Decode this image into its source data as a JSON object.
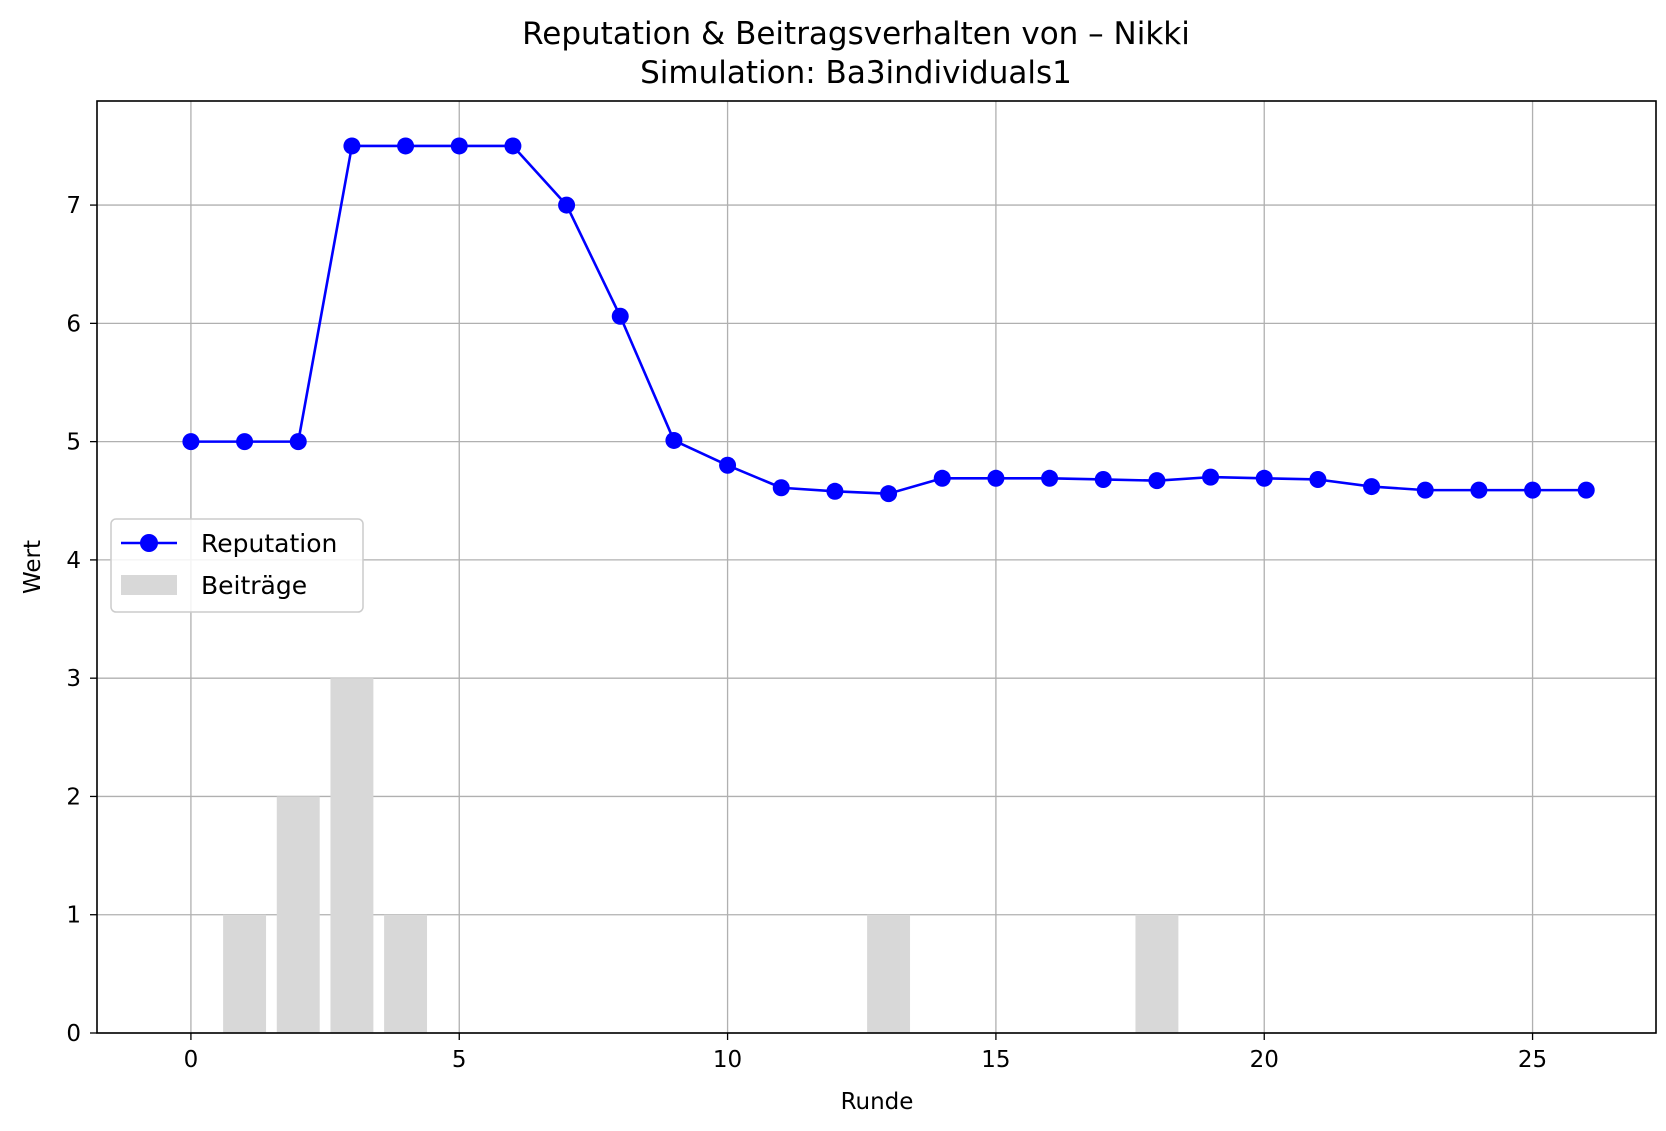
{
  "chart_data": {
    "type": "line",
    "title": "Reputation & Beitragsverhalten von – Nikki",
    "subtitle": "Simulation: Ba3individuals1",
    "xlabel": "Runde",
    "ylabel": "Wert",
    "xlim": [
      -1.75,
      27.3
    ],
    "ylim": [
      0,
      7.88
    ],
    "xticks": [
      0,
      5,
      10,
      15,
      20,
      25
    ],
    "yticks": [
      0,
      1,
      2,
      3,
      4,
      5,
      6,
      7
    ],
    "grid": true,
    "legend_position": "center-left",
    "series": [
      {
        "name": "Reputation",
        "kind": "line",
        "color": "#0000ff",
        "marker": "circle",
        "x": [
          0,
          1,
          2,
          3,
          4,
          5,
          6,
          7,
          8,
          9,
          10,
          11,
          12,
          13,
          14,
          15,
          16,
          17,
          18,
          19,
          20,
          21,
          22,
          23,
          24,
          25,
          26
        ],
        "values": [
          5.0,
          5.0,
          5.0,
          7.5,
          7.5,
          7.5,
          7.5,
          7.0,
          6.06,
          5.01,
          4.8,
          4.61,
          4.58,
          4.56,
          4.69,
          4.69,
          4.69,
          4.68,
          4.67,
          4.7,
          4.69,
          4.68,
          4.62,
          4.59,
          4.59,
          4.59,
          4.59
        ]
      },
      {
        "name": "Beiträge",
        "kind": "bar",
        "color": "#d8d8d8",
        "x": [
          1,
          2,
          3,
          4,
          13,
          18
        ],
        "values": [
          1,
          2,
          3,
          1,
          1,
          1
        ]
      }
    ]
  }
}
